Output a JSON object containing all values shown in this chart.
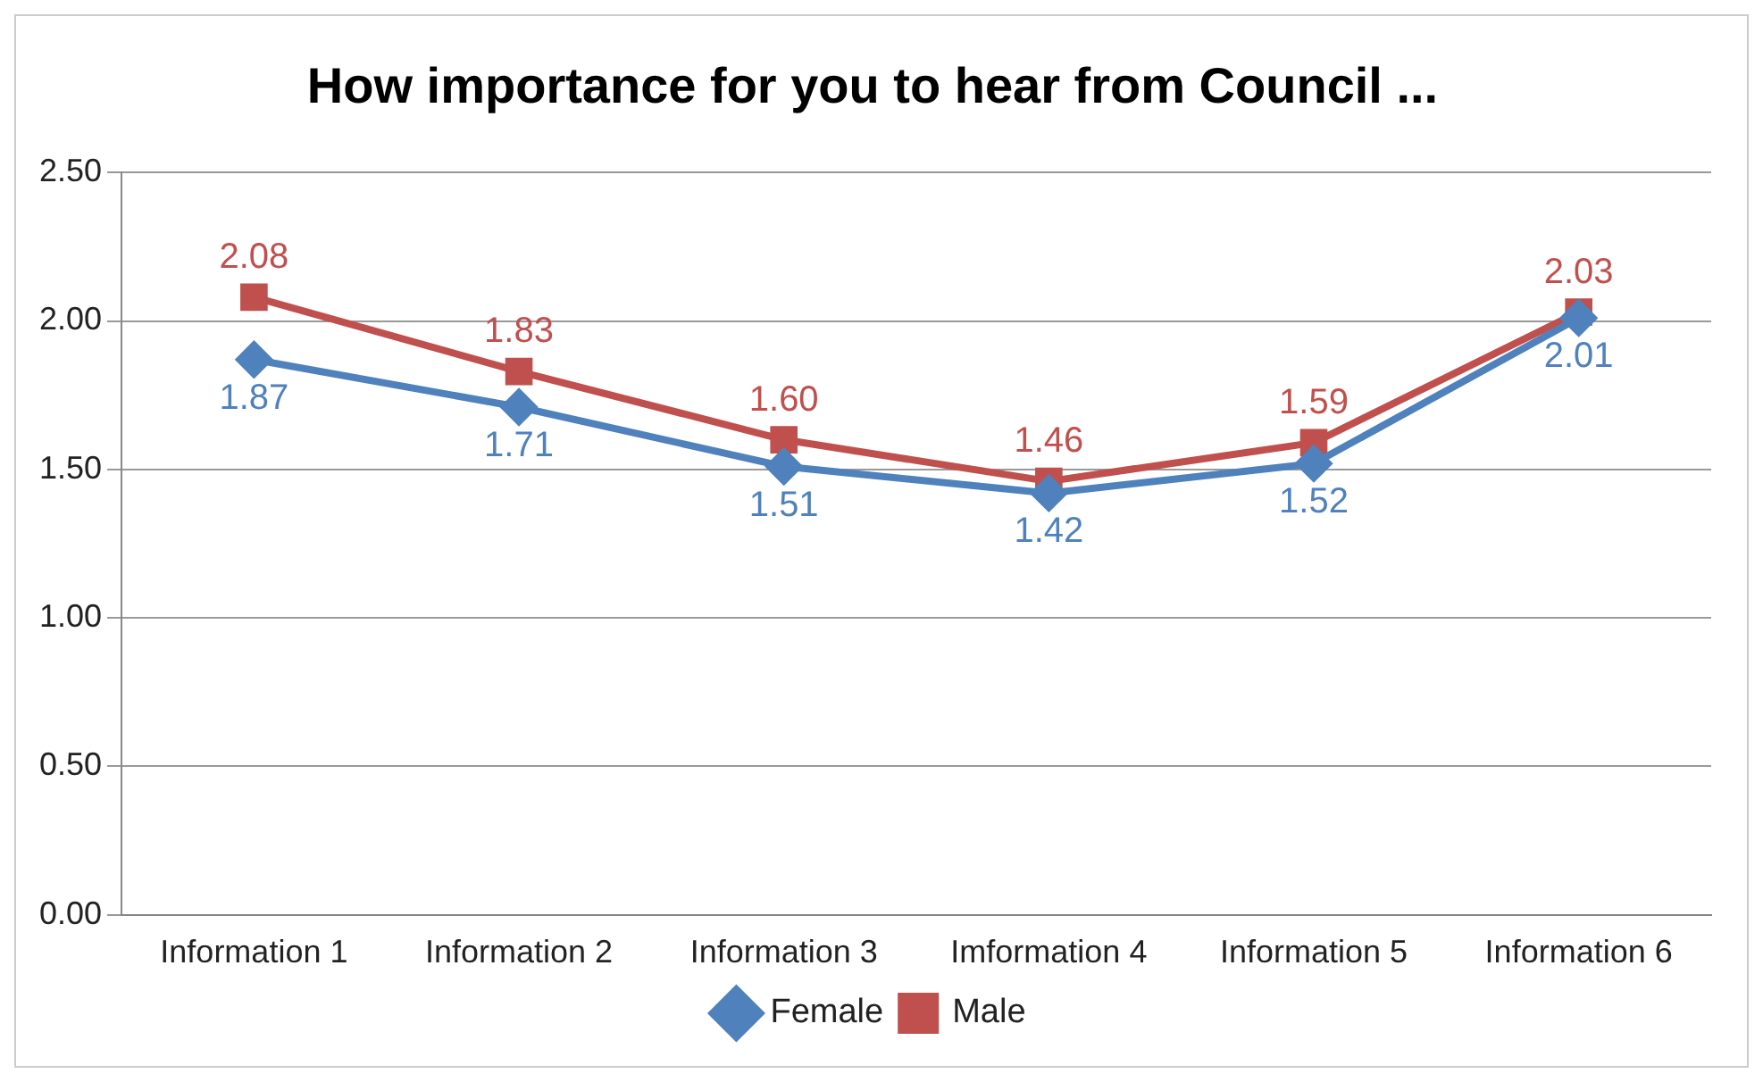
{
  "chart_data": {
    "type": "line",
    "title": "How importance for you to hear from Council ...",
    "categories": [
      "Information 1",
      "Information 2",
      "Information 3",
      "Imformation 4",
      "Information 5",
      "Information 6"
    ],
    "series": [
      {
        "name": "Female",
        "color": "#4f81bd",
        "marker": "diamond",
        "values": [
          1.87,
          1.71,
          1.51,
          1.42,
          1.52,
          2.01
        ],
        "value_labels": [
          "1.87",
          "1.71",
          "1.51",
          "1.42",
          "1.52",
          "2.01"
        ]
      },
      {
        "name": "Male",
        "color": "#c0504d",
        "marker": "square",
        "values": [
          2.08,
          1.83,
          1.6,
          1.46,
          1.59,
          2.03
        ],
        "value_labels": [
          "2.08",
          "1.83",
          "1.60",
          "1.46",
          "1.59",
          "2.03"
        ]
      }
    ],
    "ylim": [
      0,
      2.5
    ],
    "yticks": [
      {
        "value": 0,
        "label": "0.00"
      },
      {
        "value": 0.5,
        "label": "0.50"
      },
      {
        "value": 1,
        "label": "1.00"
      },
      {
        "value": 1.5,
        "label": "1.50"
      },
      {
        "value": 2,
        "label": "2.00"
      },
      {
        "value": 2.5,
        "label": "2.50"
      }
    ],
    "grid": "y",
    "legend": "bottom"
  }
}
